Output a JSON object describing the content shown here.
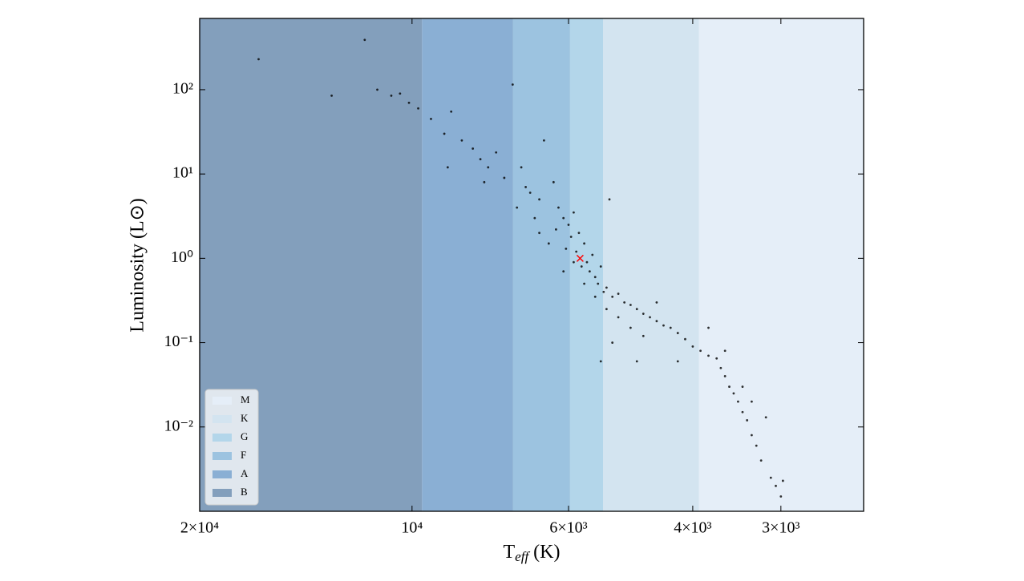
{
  "chart_data": {
    "type": "scatter",
    "xlabel_parts": [
      "T",
      "eff",
      " (K)"
    ],
    "ylabel": "Luminosity (L⊙)",
    "xscale": "log",
    "yscale": "log",
    "xlim": [
      20000,
      2290
    ],
    "ylim": [
      0.001,
      700
    ],
    "xticks": [
      {
        "value": 20000,
        "label": "2×10⁴"
      },
      {
        "value": 10000,
        "label": "10⁴"
      },
      {
        "value": 6000,
        "label": "6×10³"
      },
      {
        "value": 4000,
        "label": "4×10³"
      },
      {
        "value": 3000,
        "label": "3×10³"
      }
    ],
    "yticks": [
      {
        "value": 100,
        "label": "10²"
      },
      {
        "value": 10,
        "label": "10¹"
      },
      {
        "value": 1,
        "label": "10⁰"
      },
      {
        "value": 0.1,
        "label": "10⁻¹"
      },
      {
        "value": 0.01,
        "label": "10⁻²"
      }
    ],
    "bands": [
      {
        "name": "M",
        "range": [
          3920,
          2290
        ],
        "color": "#e5eef8"
      },
      {
        "name": "K",
        "range": [
          5360,
          3920
        ],
        "color": "#d3e4f0"
      },
      {
        "name": "G",
        "range": [
          5970,
          5360
        ],
        "color": "#b3d6ea"
      },
      {
        "name": "F",
        "range": [
          7190,
          5970
        ],
        "color": "#9cc3e0"
      },
      {
        "name": "A",
        "range": [
          9680,
          7190
        ],
        "color": "#8aafd4"
      },
      {
        "name": "B",
        "range": [
          20000,
          9680
        ],
        "color": "#839fbc"
      }
    ],
    "legend": "lower left",
    "color": "#000000",
    "x": [
      16500,
      13000,
      11670,
      11200,
      10700,
      10400,
      10100,
      9800,
      9400,
      9000,
      8800,
      8500,
      8200,
      8000,
      7800,
      7600,
      7400,
      7200,
      7000,
      6900,
      6800,
      6600,
      6500,
      6300,
      6200,
      6100,
      6000,
      5950,
      5900,
      5850,
      5800,
      5750,
      5700,
      5650,
      5600,
      5550,
      5500,
      5450,
      5400,
      5350,
      5300,
      5250,
      5200,
      5100,
      5000,
      4900,
      4800,
      4700,
      4600,
      4500,
      4400,
      4300,
      4200,
      4100,
      4000,
      3900,
      3800,
      3700,
      3650,
      3600,
      3550,
      3500,
      3450,
      3400,
      3350,
      3300,
      3250,
      3200,
      3100,
      3050,
      2980,
      3000,
      5400,
      5200,
      4800,
      6400,
      6250,
      6050,
      5900,
      6100,
      5700,
      5500,
      5300,
      5100,
      4900,
      4700,
      6700,
      7100,
      6600,
      8900,
      7900,
      4500,
      4200,
      3800,
      3600,
      3400,
      3300,
      3150
    ],
    "values": [
      230,
      85,
      390,
      100,
      85,
      90,
      70,
      60,
      45,
      30,
      55,
      25,
      20,
      15,
      12,
      18,
      9,
      115,
      12,
      7,
      6,
      5,
      25,
      8,
      4,
      3,
      2.5,
      1.8,
      3.5,
      1.2,
      2,
      0.8,
      1.5,
      0.9,
      0.7,
      1.1,
      0.6,
      0.5,
      0.8,
      0.4,
      0.45,
      5,
      0.35,
      0.38,
      0.3,
      0.28,
      0.25,
      0.22,
      0.2,
      0.18,
      0.16,
      0.15,
      0.13,
      0.11,
      0.09,
      0.08,
      0.07,
      0.065,
      0.05,
      0.04,
      0.03,
      0.025,
      0.02,
      0.015,
      0.012,
      0.008,
      0.006,
      0.004,
      0.0025,
      0.002,
      0.0023,
      0.0015,
      0.06,
      0.1,
      0.06,
      1.5,
      2.2,
      1.3,
      0.9,
      0.7,
      0.5,
      0.35,
      0.25,
      0.2,
      0.15,
      0.12,
      3,
      4,
      2,
      12,
      8,
      0.3,
      0.06,
      0.15,
      0.08,
      0.03,
      0.02,
      0.013
    ],
    "highlight": {
      "x": 5778,
      "y": 1,
      "color": "#ff0000"
    }
  }
}
